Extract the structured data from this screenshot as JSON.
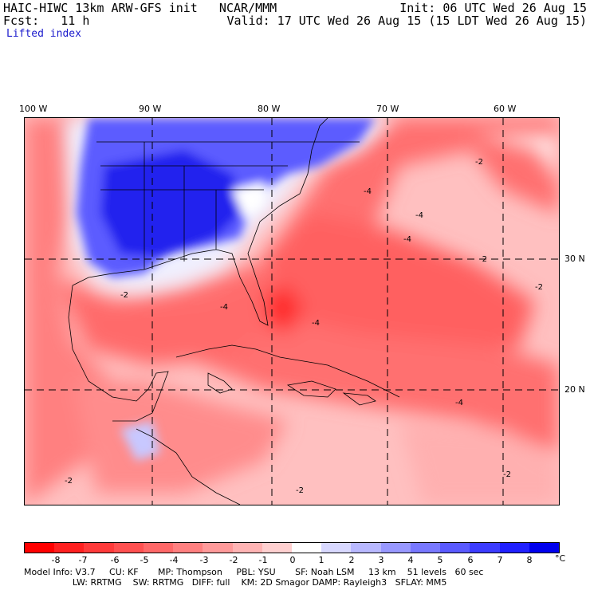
{
  "header": {
    "line1_left": "HAIC-HIWC 13km ARW-GFS init   NCAR/MMM",
    "line1_right": "Init: 06 UTC Wed 26 Aug 15",
    "line2_left": "Fcst:   11 h",
    "line2_right": "Valid: 17 UTC Wed 26 Aug 15 (15 LDT Wed 26 Aug 15)",
    "field": "Lifted index"
  },
  "map": {
    "lon_labels": [
      "100 W",
      "90 W",
      "80 W",
      "70 W",
      "60 W"
    ],
    "lat_labels": [
      "30 N",
      "20 N"
    ],
    "contour_labels": [
      "-2",
      "-4",
      "-2",
      "-4",
      "-2",
      "-4",
      "-4",
      "-2",
      "-4",
      "-4",
      "-2",
      "-2",
      "-2"
    ]
  },
  "colorbar": {
    "labels": [
      "-8",
      "-7",
      "-6",
      "-5",
      "-4",
      "-3",
      "-2",
      "-1",
      "0",
      "1",
      "2",
      "3",
      "4",
      "5",
      "6",
      "7",
      "8"
    ],
    "unit": "°C",
    "colors": [
      "#ff0000",
      "#ff2020",
      "#ff3a3a",
      "#ff5050",
      "#ff6868",
      "#ff8080",
      "#ff9a9a",
      "#ffb4b4",
      "#ffd0d0",
      "#ffffff",
      "#d8d8ff",
      "#b8b8ff",
      "#9898ff",
      "#7878ff",
      "#5a5aff",
      "#3c3cff",
      "#2020ff",
      "#0000ee"
    ]
  },
  "footer": {
    "line1": "Model Info: V3.7     CU: KF       MP: Thompson     PBL: YSU       SF: Noah LSM     13 km    51 levels   60 sec",
    "line2": "                          LW: RRTMG    SW: RRTMG   DIFF: full    KM: 2D Smagor DAMP: Rayleigh3   SFLAY: MM5"
  }
}
